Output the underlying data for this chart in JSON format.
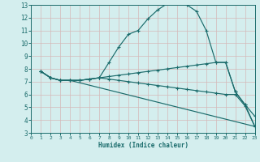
{
  "xlabel": "Humidex (Indice chaleur)",
  "bg_color": "#d4eeee",
  "grid_color": "#c8dede",
  "line_color": "#1a6b6b",
  "xlim": [
    0,
    23
  ],
  "ylim": [
    3,
    13
  ],
  "xticks": [
    0,
    1,
    2,
    3,
    4,
    5,
    6,
    7,
    8,
    9,
    10,
    11,
    12,
    13,
    14,
    15,
    16,
    17,
    18,
    19,
    20,
    21,
    22,
    23
  ],
  "yticks": [
    3,
    4,
    5,
    6,
    7,
    8,
    9,
    10,
    11,
    12,
    13
  ],
  "lines": [
    {
      "x": [
        1,
        2,
        3,
        4,
        5,
        6,
        7,
        8,
        9,
        10,
        11,
        12,
        13,
        14,
        15,
        16,
        17,
        18,
        19,
        20,
        21,
        22,
        23
      ],
      "y": [
        7.8,
        7.3,
        7.1,
        7.1,
        7.1,
        7.2,
        7.3,
        8.5,
        9.7,
        10.7,
        11.0,
        11.9,
        12.6,
        13.1,
        13.2,
        13.0,
        12.5,
        11.0,
        8.5,
        8.5,
        6.2,
        5.2,
        3.5
      ]
    },
    {
      "x": [
        1,
        2,
        3,
        4,
        5,
        6,
        7,
        8,
        9,
        10,
        11,
        12,
        13,
        14,
        15,
        16,
        17,
        18,
        19,
        20,
        21,
        22,
        23
      ],
      "y": [
        7.8,
        7.3,
        7.1,
        7.1,
        7.1,
        7.2,
        7.3,
        7.4,
        7.5,
        7.6,
        7.7,
        7.8,
        7.9,
        8.0,
        8.1,
        8.2,
        8.3,
        8.4,
        8.5,
        8.5,
        6.2,
        5.2,
        4.3
      ]
    },
    {
      "x": [
        1,
        2,
        3,
        4,
        5,
        6,
        7,
        8,
        9,
        10,
        11,
        12,
        13,
        14,
        15,
        16,
        17,
        18,
        19,
        20,
        21,
        22,
        23
      ],
      "y": [
        7.8,
        7.3,
        7.1,
        7.1,
        7.1,
        7.2,
        7.3,
        7.2,
        7.1,
        7.0,
        6.9,
        6.8,
        6.7,
        6.6,
        6.5,
        6.4,
        6.3,
        6.2,
        6.1,
        6.0,
        6.0,
        5.1,
        3.5
      ]
    },
    {
      "x": [
        1,
        2,
        3,
        4,
        23
      ],
      "y": [
        7.8,
        7.3,
        7.1,
        7.1,
        3.5
      ]
    }
  ]
}
